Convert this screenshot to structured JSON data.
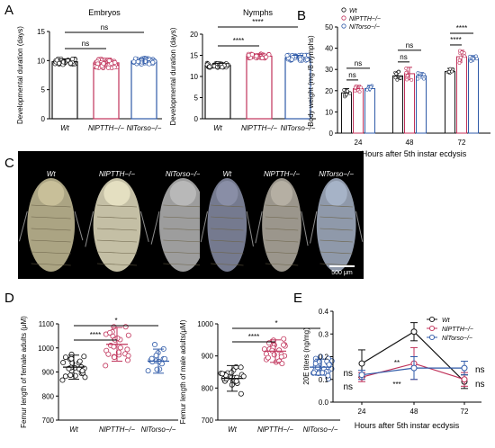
{
  "panel_labels": {
    "A": "A",
    "B": "B",
    "C": "C",
    "D": "D",
    "E": "E"
  },
  "colors": {
    "wt": "#111111",
    "pth": "#c0325a",
    "torso": "#2f5aa8",
    "photo_bg": "#000000"
  },
  "chart_data": [
    {
      "id": "A1",
      "type": "bar",
      "title": "Embryos",
      "ylabel": "Developmental duration (days)",
      "ylim": [
        0,
        15
      ],
      "yticks": [
        0,
        5,
        10,
        15
      ],
      "categories": [
        "Wt",
        "NlPTTH−/−",
        "NlTorso−/−"
      ],
      "values": [
        9.8,
        9.6,
        9.9
      ],
      "errors": [
        0.5,
        0.8,
        0.5
      ],
      "annotations": [
        {
          "text": "ns",
          "between": [
            0,
            1
          ]
        },
        {
          "text": "ns",
          "between": [
            0,
            2
          ]
        }
      ]
    },
    {
      "id": "A2",
      "type": "bar",
      "title": "Nymphs",
      "ylabel": "Developmental duration (days)",
      "ylim": [
        0,
        20
      ],
      "yticks": [
        0,
        5,
        10,
        15,
        20
      ],
      "categories": [
        "Wt",
        "NlPTTH−/−",
        "NlTorso−/−"
      ],
      "values": [
        12.6,
        14.8,
        14.4
      ],
      "errors": [
        0.5,
        0.5,
        0.6
      ],
      "annotations": [
        {
          "text": "****",
          "between": [
            0,
            1
          ]
        },
        {
          "text": "****",
          "between": [
            0,
            2
          ]
        }
      ]
    },
    {
      "id": "B",
      "type": "bar",
      "ylabel": "Body weight (mg /8 nymphs)",
      "xlabel": "Hours after 5th instar ecdysis",
      "ylim": [
        0,
        50
      ],
      "yticks": [
        0,
        10,
        20,
        30,
        40,
        50
      ],
      "categories": [
        "24",
        "48",
        "72"
      ],
      "legend": {
        "position": "top-left",
        "entries": [
          "Wt",
          "NlPTTH−/−",
          "NlTorso−/−"
        ]
      },
      "series": [
        {
          "name": "Wt",
          "values": [
            19,
            27,
            29
          ],
          "errors": [
            2,
            2,
            1.5
          ]
        },
        {
          "name": "NlPTTH−/−",
          "values": [
            21,
            28,
            36
          ],
          "errors": [
            1.5,
            3,
            3
          ]
        },
        {
          "name": "NlTorso−/−",
          "values": [
            21,
            27,
            35
          ],
          "errors": [
            1.5,
            1.5,
            1.5
          ]
        }
      ],
      "annotations": [
        {
          "group": 0,
          "labels": [
            "ns",
            "ns"
          ]
        },
        {
          "group": 1,
          "labels": [
            "ns",
            "ns"
          ]
        },
        {
          "group": 2,
          "labels": [
            "****",
            "****"
          ]
        }
      ]
    },
    {
      "id": "D1",
      "type": "scatter",
      "ylabel": "Femur length of female adults (μM)",
      "ylim": [
        700,
        1100
      ],
      "yticks": [
        700,
        800,
        900,
        1000,
        1100
      ],
      "categories": [
        "Wt",
        "NlPTTH−/−",
        "NlTorso−/−"
      ],
      "means": [
        920,
        1015,
        945
      ],
      "sds": [
        50,
        70,
        50
      ],
      "annotations": [
        {
          "text": "****",
          "between": [
            0,
            1
          ]
        },
        {
          "text": "*",
          "between": [
            0,
            2
          ]
        }
      ]
    },
    {
      "id": "D2",
      "type": "scatter",
      "ylabel": "Femur length of male adults(μM)",
      "ylim": [
        700,
        1000
      ],
      "yticks": [
        700,
        800,
        900,
        1000
      ],
      "categories": [
        "Wt",
        "NlPTTH−/−",
        "NlTorso−/−"
      ],
      "means": [
        830,
        915,
        865
      ],
      "sds": [
        40,
        35,
        25
      ],
      "annotations": [
        {
          "text": "****",
          "between": [
            0,
            1
          ]
        },
        {
          "text": "*",
          "between": [
            0,
            2
          ]
        }
      ]
    },
    {
      "id": "E",
      "type": "line",
      "ylabel": "20E titers (ng/mg)",
      "xlabel": "Hours after 5th instar ecdysis",
      "x": [
        "24",
        "48",
        "72"
      ],
      "ylim": [
        0,
        0.4
      ],
      "yticks": [
        "0.0",
        "0.1",
        "0.2",
        "0.3",
        "0.4"
      ],
      "legend": {
        "position": "top-right",
        "entries": [
          "Wt",
          "NlPTTH−/−",
          "NlTorso−/−"
        ]
      },
      "series": [
        {
          "name": "Wt",
          "values": [
            0.17,
            0.31,
            0.09
          ],
          "errors": [
            0.06,
            0.04,
            0.03
          ]
        },
        {
          "name": "NlPTTH−/−",
          "values": [
            0.11,
            0.17,
            0.1
          ],
          "errors": [
            0.02,
            0.07,
            0.03
          ]
        },
        {
          "name": "NlTorso−/−",
          "values": [
            0.12,
            0.15,
            0.15
          ],
          "errors": [
            0.02,
            0.05,
            0.03
          ]
        }
      ],
      "annotations": {
        "left": [
          "ns",
          "ns"
        ],
        "mid": [
          "**",
          "***"
        ],
        "right": [
          "ns",
          "ns"
        ]
      }
    }
  ],
  "photos": {
    "left_labels": [
      "Wt",
      "NlPTTH−/−",
      "NlTorso−/−"
    ],
    "right_labels": [
      "Wt",
      "NlPTTH−/−",
      "NlTorso−/−"
    ],
    "scale_bar": "500 μm"
  }
}
